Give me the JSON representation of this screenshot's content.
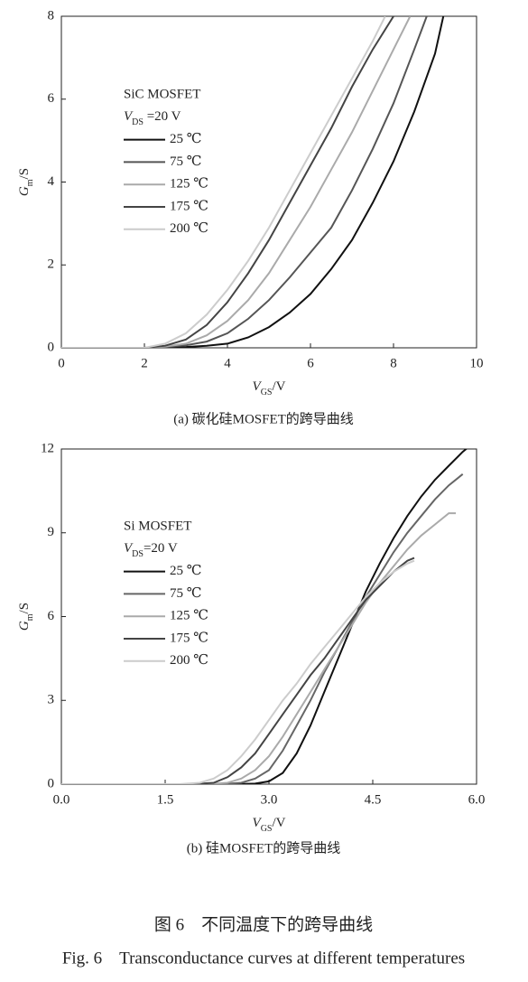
{
  "chart_data": [
    {
      "type": "line",
      "xlabel": {
        "symbol": "V",
        "subscript": "GS",
        "unit": "/V"
      },
      "ylabel": {
        "symbol": "G",
        "subscript": "m",
        "unit": "/S"
      },
      "legend_title": "SiC MOSFET",
      "legend_subtitle": {
        "symbol": "V",
        "subscript": "DS",
        "rest": " =20 V"
      },
      "caption": "(a) 碳化硅MOSFET的跨导曲线",
      "xlim": [
        0,
        10
      ],
      "ylim": [
        0,
        8
      ],
      "xticks": [
        0,
        2,
        4,
        6,
        8,
        10
      ],
      "yticks": [
        0,
        2,
        4,
        6,
        8
      ],
      "series": [
        {
          "name": "25 ℃",
          "color": "#111111",
          "x": [
            0,
            2,
            2.5,
            3,
            3.5,
            4,
            4.5,
            5,
            5.5,
            6,
            6.5,
            7,
            7.5,
            8,
            8.5,
            9,
            9.2
          ],
          "values": [
            0,
            0,
            0.01,
            0.02,
            0.05,
            0.1,
            0.25,
            0.5,
            0.85,
            1.3,
            1.9,
            2.6,
            3.5,
            4.5,
            5.7,
            7.1,
            8
          ]
        },
        {
          "name": "75 ℃",
          "color": "#555555",
          "x": [
            0,
            2,
            2.5,
            3,
            3.5,
            4,
            4.5,
            5,
            5.5,
            6,
            6.5,
            7,
            7.5,
            8,
            8.5,
            8.8
          ],
          "values": [
            0,
            0,
            0.02,
            0.06,
            0.15,
            0.35,
            0.7,
            1.15,
            1.7,
            2.3,
            2.9,
            3.8,
            4.8,
            5.9,
            7.2,
            8
          ]
        },
        {
          "name": "125 ℃",
          "color": "#aaaaaa",
          "x": [
            0,
            2,
            2.5,
            3,
            3.5,
            4,
            4.5,
            5,
            5.5,
            6,
            6.5,
            7,
            7.5,
            8,
            8.4
          ],
          "values": [
            0,
            0,
            0.03,
            0.1,
            0.3,
            0.65,
            1.15,
            1.8,
            2.6,
            3.4,
            4.3,
            5.2,
            6.2,
            7.2,
            8
          ]
        },
        {
          "name": "175 ℃",
          "color": "#444444",
          "x": [
            0,
            2,
            2.5,
            3,
            3.5,
            4,
            4.5,
            5,
            5.5,
            6,
            6.5,
            7,
            7.5,
            8
          ],
          "values": [
            0,
            0,
            0.05,
            0.2,
            0.55,
            1.1,
            1.8,
            2.6,
            3.5,
            4.4,
            5.3,
            6.3,
            7.2,
            8
          ]
        },
        {
          "name": "200 ℃",
          "color": "#cccccc",
          "x": [
            0,
            2,
            2.5,
            3,
            3.5,
            4,
            4.5,
            5,
            5.5,
            6,
            6.5,
            7,
            7.5,
            7.8
          ],
          "values": [
            0,
            0,
            0.1,
            0.35,
            0.8,
            1.4,
            2.1,
            2.9,
            3.8,
            4.7,
            5.6,
            6.5,
            7.4,
            8
          ]
        }
      ]
    },
    {
      "type": "line",
      "xlabel": {
        "symbol": "V",
        "subscript": "GS",
        "unit": "/V"
      },
      "ylabel": {
        "symbol": "G",
        "subscript": "m",
        "unit": "/S"
      },
      "legend_title": "Si MOSFET",
      "legend_subtitle": {
        "symbol": "V",
        "subscript": "DS",
        "rest": "=20 V"
      },
      "caption": "(b) 硅MOSFET的跨导曲线",
      "xlim": [
        0,
        6
      ],
      "ylim": [
        0,
        12
      ],
      "xticks": [
        {
          "value": 0,
          "label": "0.0"
        },
        1.5,
        {
          "value": 3,
          "label": "3.0"
        },
        4.5,
        {
          "value": 6,
          "label": "6.0"
        }
      ],
      "yticks": [
        0,
        3,
        6,
        9,
        12
      ],
      "series": [
        {
          "name": "25 ℃",
          "color": "#111111",
          "x": [
            0,
            2.5,
            2.8,
            3.0,
            3.2,
            3.4,
            3.6,
            3.8,
            4.0,
            4.2,
            4.4,
            4.6,
            4.8,
            5.0,
            5.2,
            5.4,
            5.6,
            5.8,
            5.9
          ],
          "values": [
            0,
            0,
            0.02,
            0.1,
            0.4,
            1.1,
            2.1,
            3.3,
            4.5,
            5.7,
            6.9,
            7.9,
            8.8,
            9.6,
            10.3,
            10.9,
            11.4,
            11.9,
            12.1
          ]
        },
        {
          "name": "75 ℃",
          "color": "#666666",
          "x": [
            0,
            2.3,
            2.6,
            2.8,
            3.0,
            3.2,
            3.4,
            3.6,
            3.8,
            4.0,
            4.2,
            4.4,
            4.6,
            4.8,
            5.0,
            5.2,
            5.4,
            5.6,
            5.8
          ],
          "values": [
            0,
            0,
            0.05,
            0.2,
            0.5,
            1.2,
            2.1,
            3.0,
            4.0,
            4.9,
            5.8,
            6.7,
            7.5,
            8.3,
            9.0,
            9.6,
            10.2,
            10.7,
            11.1
          ]
        },
        {
          "name": "125 ℃",
          "color": "#aaaaaa",
          "x": [
            0,
            2.1,
            2.4,
            2.6,
            2.8,
            3.0,
            3.2,
            3.4,
            3.6,
            3.8,
            4.0,
            4.2,
            4.4,
            4.6,
            4.8,
            5.0,
            5.2,
            5.4,
            5.6,
            5.7
          ],
          "values": [
            0,
            0,
            0.05,
            0.2,
            0.5,
            1.0,
            1.7,
            2.5,
            3.3,
            4.1,
            4.9,
            5.7,
            6.5,
            7.2,
            7.8,
            8.4,
            8.9,
            9.3,
            9.7,
            9.7
          ]
        },
        {
          "name": "175 ℃",
          "color": "#444444",
          "x": [
            0,
            1.9,
            2.2,
            2.4,
            2.6,
            2.8,
            3.0,
            3.2,
            3.4,
            3.6,
            3.8,
            4.0,
            4.2,
            4.4,
            4.6,
            4.8,
            5.0,
            5.1
          ],
          "values": [
            0,
            0,
            0.05,
            0.25,
            0.6,
            1.1,
            1.8,
            2.5,
            3.2,
            3.9,
            4.5,
            5.2,
            5.9,
            6.6,
            7.1,
            7.6,
            8.0,
            8.1
          ]
        },
        {
          "name": "200 ℃",
          "color": "#cccccc",
          "x": [
            0,
            1.7,
            2.0,
            2.2,
            2.4,
            2.6,
            2.8,
            3.0,
            3.2,
            3.4,
            3.6,
            3.8,
            4.0,
            4.2,
            4.4,
            4.6,
            4.8,
            5.0,
            5.1
          ],
          "values": [
            0,
            0,
            0.05,
            0.2,
            0.5,
            1.0,
            1.6,
            2.3,
            3.0,
            3.6,
            4.3,
            4.9,
            5.5,
            6.1,
            6.7,
            7.2,
            7.6,
            7.9,
            8.0
          ]
        }
      ]
    }
  ],
  "figure_caption": {
    "cn": "图 6　不同温度下的跨导曲线",
    "en": "Fig. 6　Transconductance curves at different temperatures"
  }
}
